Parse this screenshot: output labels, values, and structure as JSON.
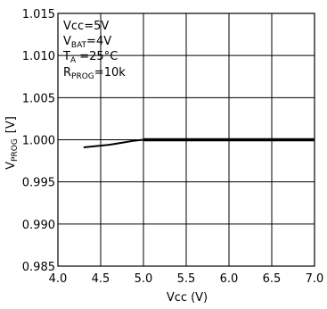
{
  "chart_data": {
    "type": "line",
    "xlabel_main": "Vcc",
    "xlabel_unit": "(V)",
    "ylabel_main": "V",
    "ylabel_sub": "PROG",
    "ylabel_unit": "[V]",
    "xlim": [
      4.0,
      7.0
    ],
    "ylim": [
      0.985,
      1.015
    ],
    "x_ticks": [
      4.0,
      4.5,
      5.0,
      5.5,
      6.0,
      6.5,
      7.0
    ],
    "y_ticks": [
      0.985,
      0.99,
      0.995,
      1.0,
      1.005,
      1.01,
      1.015
    ],
    "x_tick_labels": [
      "4.0",
      "4.5",
      "5.0",
      "5.5",
      "6.0",
      "6.5",
      "7.0"
    ],
    "y_tick_labels": [
      "0.985",
      "0.990",
      "0.995",
      "1.000",
      "1.005",
      "1.010",
      "1.015"
    ],
    "grid": true,
    "annotations": {
      "line1": "Vcc=5V",
      "line2_main": "V",
      "line2_sub": "BAT",
      "line2_rest": "=4V",
      "line3_main": "T",
      "line3_sub": "A",
      "line3_rest": " =25°C",
      "line4_main": "R",
      "line4_sub": "PROG",
      "line4_rest": "=10k"
    },
    "series": [
      {
        "color": "#000000",
        "x": [
          4.3,
          4.6,
          4.9,
          5.0,
          7.0
        ],
        "y": [
          0.9991,
          0.9994,
          0.9999,
          1.0,
          1.0
        ]
      }
    ]
  }
}
